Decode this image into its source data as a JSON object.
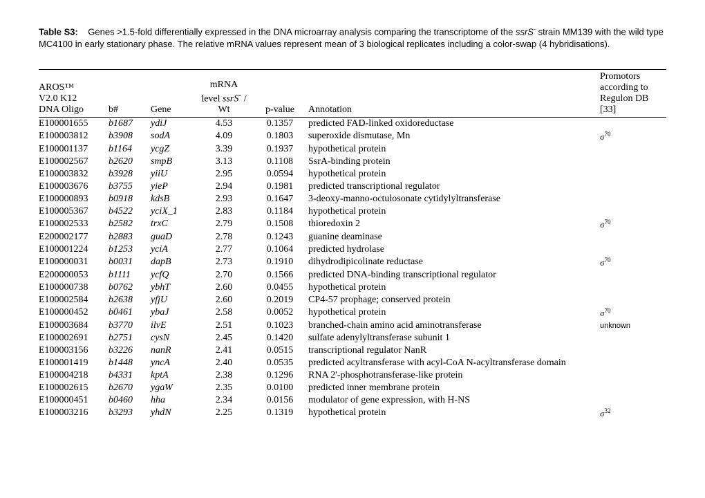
{
  "caption": {
    "label": "Table S3:",
    "text_before_ssrs": "Genes >1.5-fold differentially expressed in the DNA microarray analysis comparing the transcriptome of the ",
    "ssrs": "ssrS",
    "sup_minus": "-",
    "text_after_ssrs": " strain MM139 with the wild type MC4100 in early stationary phase. The relative mRNA values represent mean of 3 biological replicates including a color-swap (4 hybridisations)."
  },
  "headers": {
    "oligo_l1": "AROS™",
    "oligo_l2": "V2.0 K12",
    "oligo_l3": "DNA Oligo",
    "bnum": "b#",
    "gene": "Gene",
    "mrna_l1": "mRNA",
    "mrna_l2_before": "level ",
    "mrna_l2_it": "ssrS",
    "mrna_l2_sup": "-",
    "mrna_l2_after": " /",
    "mrna_l3": "Wt",
    "pval": "p-value",
    "annot": "Annotation",
    "prom_l1": "Promotors",
    "prom_l2": "according to",
    "prom_l3": "Regulon DB",
    "prom_l4": "[33]"
  },
  "rows": [
    {
      "oligo": "E100001655",
      "b": "b1687",
      "gene": "ydiJ",
      "mrna": "4.53",
      "p": "0.1357",
      "annot": "predicted FAD-linked oxidoreductase",
      "prom": ""
    },
    {
      "oligo": "E100003812",
      "b": "b3908",
      "gene": "sodA",
      "mrna": "4.09",
      "p": "0.1803",
      "annot": "superoxide dismutase, Mn",
      "prom": "σ70"
    },
    {
      "oligo": "E100001137",
      "b": "b1164",
      "gene": "ycgZ",
      "mrna": "3.39",
      "p": "0.1937",
      "annot": "hypothetical protein",
      "prom": ""
    },
    {
      "oligo": "E100002567",
      "b": "b2620",
      "gene": "smpB",
      "mrna": "3.13",
      "p": "0.1108",
      "annot": "SsrA-binding protein",
      "prom": ""
    },
    {
      "oligo": "E100003832",
      "b": "b3928",
      "gene": "yiiU",
      "mrna": "2.95",
      "p": "0.0594",
      "annot": "hypothetical protein",
      "prom": ""
    },
    {
      "oligo": "E100003676",
      "b": "b3755",
      "gene": "yieP",
      "mrna": "2.94",
      "p": "0.1981",
      "annot": "predicted transcriptional regulator",
      "prom": ""
    },
    {
      "oligo": "E100000893",
      "b": "b0918",
      "gene": "kdsB",
      "mrna": "2.93",
      "p": "0.1647",
      "annot": "3-deoxy-manno-octulosonate cytidylyltransferase",
      "prom": ""
    },
    {
      "oligo": "E100005367",
      "b": "b4522",
      "gene": "yciX_1",
      "mrna": "2.83",
      "p": "0.1184",
      "annot": "hypothetical protein",
      "prom": ""
    },
    {
      "oligo": "E100002533",
      "b": "b2582",
      "gene": "trxC",
      "mrna": "2.79",
      "p": "0.1508",
      "annot": "thioredoxin 2",
      "prom": "σ70"
    },
    {
      "oligo": "E200002177",
      "b": "b2883",
      "gene": "guaD",
      "mrna": "2.78",
      "p": "0.1243",
      "annot": "guanine deaminase",
      "prom": ""
    },
    {
      "oligo": "E100001224",
      "b": "b1253",
      "gene": "yciA",
      "mrna": "2.77",
      "p": "0.1064",
      "annot": "predicted hydrolase",
      "prom": ""
    },
    {
      "oligo": "E100000031",
      "b": "b0031",
      "gene": "dapB",
      "mrna": "2.73",
      "p": "0.1910",
      "annot": "dihydrodipicolinate reductase",
      "prom": "σ70"
    },
    {
      "oligo": "E200000053",
      "b": "b1111",
      "gene": "ycfQ",
      "mrna": "2.70",
      "p": "0.1566",
      "annot": "predicted DNA-binding transcriptional regulator",
      "prom": ""
    },
    {
      "oligo": "E100000738",
      "b": "b0762",
      "gene": "ybhT",
      "mrna": "2.60",
      "p": "0.0455",
      "annot": "hypothetical protein",
      "prom": ""
    },
    {
      "oligo": "E100002584",
      "b": "b2638",
      "gene": "yfjU",
      "mrna": "2.60",
      "p": "0.2019",
      "annot": "CP4-57 prophage; conserved protein",
      "prom": ""
    },
    {
      "oligo": "E100000452",
      "b": "b0461",
      "gene": "ybaJ",
      "mrna": "2.58",
      "p": "0.0052",
      "annot": "hypothetical protein",
      "prom": "σ70"
    },
    {
      "oligo": "E100003684",
      "b": "b3770",
      "gene": "ilvE",
      "mrna": "2.51",
      "p": "0.1023",
      "annot": "branched-chain amino acid aminotransferase",
      "prom": "unknown"
    },
    {
      "oligo": "E100002691",
      "b": "b2751",
      "gene": "cysN",
      "mrna": "2.45",
      "p": "0.1420",
      "annot": "sulfate adenylyltransferase subunit 1",
      "prom": ""
    },
    {
      "oligo": "E100003156",
      "b": "b3226",
      "gene": "nanR",
      "mrna": "2.41",
      "p": "0.0515",
      "annot": "transcriptional regulator NanR",
      "prom": ""
    },
    {
      "oligo": "E100001419",
      "b": "b1448",
      "gene": "yncA",
      "mrna": "2.40",
      "p": "0.0535",
      "annot": "predicted acyltransferase with acyl-CoA N-acyltransferase domain",
      "prom": ""
    },
    {
      "oligo": "E100004218",
      "b": "b4331",
      "gene": "kptA",
      "mrna": "2.38",
      "p": "0.1296",
      "annot": "RNA 2'-phosphotransferase-like protein",
      "prom": ""
    },
    {
      "oligo": "E100002615",
      "b": "b2670",
      "gene": "ygaW",
      "mrna": "2.35",
      "p": "0.0100",
      "annot": "predicted inner membrane protein",
      "prom": ""
    },
    {
      "oligo": "E100000451",
      "b": "b0460",
      "gene": "hha",
      "mrna": "2.34",
      "p": "0.0156",
      "annot": "modulator of gene expression, with H-NS",
      "prom": ""
    },
    {
      "oligo": "E100003216",
      "b": "b3293",
      "gene": "yhdN",
      "mrna": "2.25",
      "p": "0.1319",
      "annot": "hypothetical protein",
      "prom": "σ32"
    }
  ]
}
